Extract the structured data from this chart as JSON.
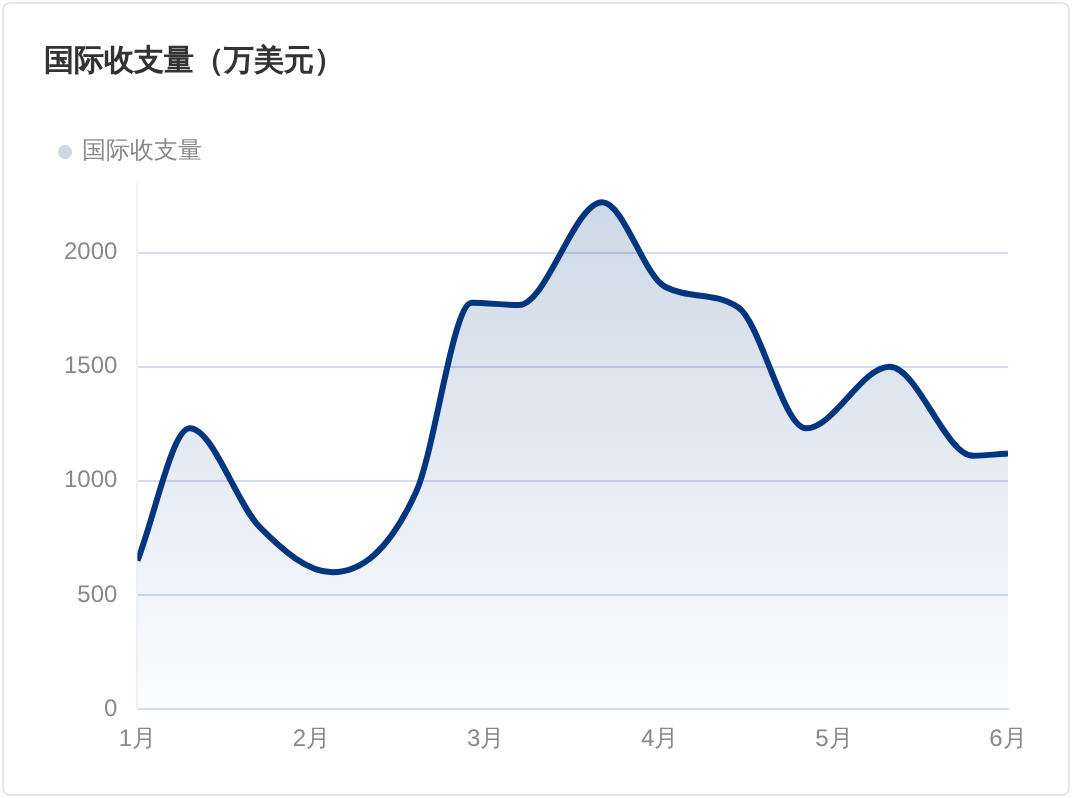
{
  "chart_data": {
    "type": "area",
    "title": "国际收支量（万美元）",
    "x": [
      1,
      1.3,
      1.7,
      2.12,
      2.6,
      2.92,
      3.19,
      3.67,
      4.03,
      4.45,
      4.84,
      5.32,
      5.8,
      6
    ],
    "series": [
      {
        "name": "国际收支量",
        "color": "#003580",
        "values": [
          650,
          1230,
          800,
          600,
          950,
          1780,
          1770,
          2220,
          1850,
          1760,
          1230,
          1500,
          1110,
          1120
        ]
      }
    ],
    "xlim": [
      1,
      6
    ],
    "xticks": [
      {
        "value": 1,
        "label": "1月"
      },
      {
        "value": 2,
        "label": "2月"
      },
      {
        "value": 3,
        "label": "3月"
      },
      {
        "value": 4,
        "label": "4月"
      },
      {
        "value": 5,
        "label": "5月"
      },
      {
        "value": 6,
        "label": "6月"
      }
    ],
    "ylim": [
      0,
      2300
    ],
    "yticks": [
      0,
      500,
      1000,
      1500,
      2000
    ],
    "grid": "y",
    "legend": "top left",
    "marker": "none",
    "line_style": "solid"
  }
}
